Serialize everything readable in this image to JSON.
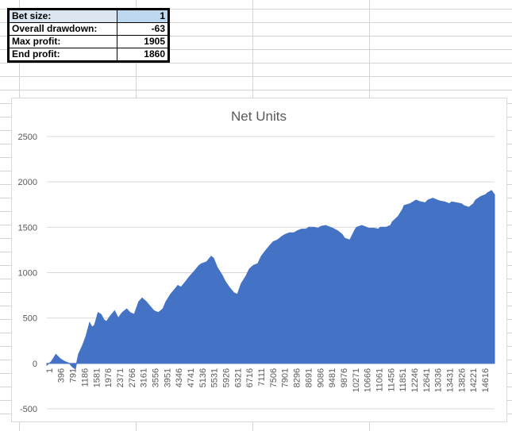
{
  "stats": {
    "rows": [
      {
        "label": "Bet size:",
        "value": "1"
      },
      {
        "label": "Overall drawdown:",
        "value": "-63"
      },
      {
        "label": "Max profit:",
        "value": "1905"
      },
      {
        "label": "End profit:",
        "value": "1860"
      }
    ]
  },
  "colors": {
    "series_fill": "#4472c4",
    "gridline": "#d9d9d9",
    "axis_text": "#595959",
    "header_cell": "#dce6f1"
  },
  "chart_data": {
    "type": "area",
    "title": "Net Units",
    "xlabel": "",
    "ylabel": "",
    "ylim": [
      -500,
      2500
    ],
    "y_ticks": [
      "-500",
      "0",
      "500",
      "1000",
      "1500",
      "2000",
      "2500"
    ],
    "x_tick_labels": [
      "1",
      "396",
      "791",
      "1186",
      "1581",
      "1976",
      "2371",
      "2766",
      "3161",
      "3556",
      "3951",
      "4346",
      "4741",
      "5136",
      "5531",
      "5926",
      "6321",
      "6716",
      "7111",
      "7506",
      "7901",
      "8296",
      "8691",
      "9086",
      "9481",
      "9876",
      "10271",
      "10666",
      "11061",
      "11456",
      "11851",
      "12246",
      "12641",
      "13036",
      "13431",
      "13826",
      "14221",
      "14616"
    ],
    "grid": true,
    "legend": "none",
    "series": [
      {
        "x": [
          1,
          150,
          300,
          450,
          600,
          750,
          850,
          950,
          1050,
          1186,
          1300,
          1420,
          1500,
          1581,
          1700,
          1800,
          1900,
          1976,
          2100,
          2250,
          2371,
          2500,
          2650,
          2766,
          2900,
          3050,
          3161,
          3300,
          3450,
          3556,
          3700,
          3850,
          3951,
          4100,
          4250,
          4346,
          4450,
          4600,
          4741,
          4900,
          5050,
          5136,
          5300,
          5450,
          5531,
          5650,
          5800,
          5926,
          6050,
          6200,
          6321,
          6450,
          6600,
          6716,
          6850,
          7000,
          7111,
          7250,
          7400,
          7506,
          7650,
          7800,
          7901,
          8050,
          8200,
          8296,
          8450,
          8600,
          8691,
          8850,
          9000,
          9086,
          9250,
          9400,
          9481,
          9650,
          9800,
          9876,
          10050,
          10200,
          10271,
          10450,
          10600,
          10666,
          10850,
          11000,
          11061,
          11250,
          11400,
          11456,
          11650,
          11800,
          11851,
          12050,
          12200,
          12246,
          12400,
          12550,
          12641,
          12800,
          12950,
          13036,
          13200,
          13350,
          13431,
          13600,
          13750,
          13826,
          14000,
          14150,
          14221,
          14400,
          14550,
          14616,
          14750,
          14850
        ],
        "values": [
          -20,
          20,
          100,
          50,
          20,
          0,
          -40,
          -60,
          100,
          200,
          300,
          450,
          400,
          420,
          560,
          540,
          480,
          460,
          520,
          580,
          500,
          560,
          600,
          560,
          540,
          680,
          720,
          680,
          620,
          580,
          560,
          600,
          680,
          760,
          820,
          860,
          840,
          900,
          960,
          1020,
          1080,
          1100,
          1120,
          1180,
          1160,
          1060,
          980,
          900,
          840,
          780,
          760,
          880,
          960,
          1040,
          1080,
          1100,
          1180,
          1240,
          1300,
          1340,
          1360,
          1400,
          1420,
          1440,
          1440,
          1460,
          1480,
          1480,
          1500,
          1500,
          1490,
          1510,
          1520,
          1500,
          1490,
          1460,
          1420,
          1380,
          1360,
          1460,
          1500,
          1520,
          1500,
          1490,
          1490,
          1480,
          1500,
          1500,
          1520,
          1560,
          1620,
          1700,
          1740,
          1760,
          1790,
          1800,
          1780,
          1770,
          1800,
          1820,
          1800,
          1790,
          1780,
          1760,
          1780,
          1770,
          1760,
          1740,
          1720,
          1760,
          1800,
          1840,
          1860,
          1880,
          1905,
          1860
        ]
      }
    ]
  }
}
